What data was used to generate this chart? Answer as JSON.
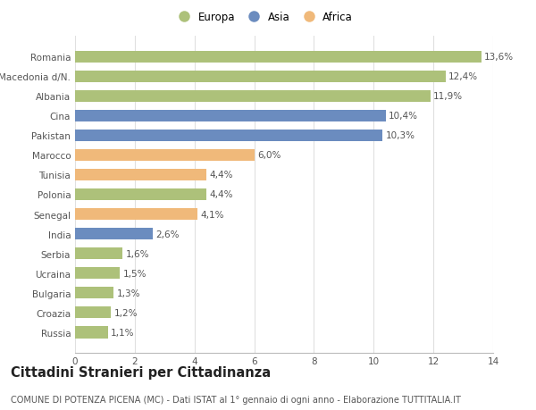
{
  "categories": [
    "Romania",
    "Macedonia d/N.",
    "Albania",
    "Cina",
    "Pakistan",
    "Marocco",
    "Tunisia",
    "Polonia",
    "Senegal",
    "India",
    "Serbia",
    "Ucraina",
    "Bulgaria",
    "Croazia",
    "Russia"
  ],
  "values": [
    13.6,
    12.4,
    11.9,
    10.4,
    10.3,
    6.0,
    4.4,
    4.4,
    4.1,
    2.6,
    1.6,
    1.5,
    1.3,
    1.2,
    1.1
  ],
  "labels": [
    "13,6%",
    "12,4%",
    "11,9%",
    "10,4%",
    "10,3%",
    "6,0%",
    "4,4%",
    "4,4%",
    "4,1%",
    "2,6%",
    "1,6%",
    "1,5%",
    "1,3%",
    "1,2%",
    "1,1%"
  ],
  "continents": [
    "Europa",
    "Europa",
    "Europa",
    "Asia",
    "Asia",
    "Africa",
    "Africa",
    "Europa",
    "Africa",
    "Asia",
    "Europa",
    "Europa",
    "Europa",
    "Europa",
    "Europa"
  ],
  "colors": {
    "Europa": "#adc17a",
    "Asia": "#6b8cbf",
    "Africa": "#f0b97a"
  },
  "legend_order": [
    "Europa",
    "Asia",
    "Africa"
  ],
  "xlim": [
    0,
    14
  ],
  "xticks": [
    0,
    2,
    4,
    6,
    8,
    10,
    12,
    14
  ],
  "background_color": "#ffffff",
  "title": "Cittadini Stranieri per Cittadinanza",
  "subtitle": "COMUNE DI POTENZA PICENA (MC) - Dati ISTAT al 1° gennaio di ogni anno - Elaborazione TUTTITALIA.IT",
  "title_fontsize": 10.5,
  "subtitle_fontsize": 7.0,
  "label_fontsize": 7.5,
  "tick_fontsize": 7.5,
  "legend_fontsize": 8.5,
  "bar_height": 0.6,
  "grid_color": "#e0e0e0"
}
